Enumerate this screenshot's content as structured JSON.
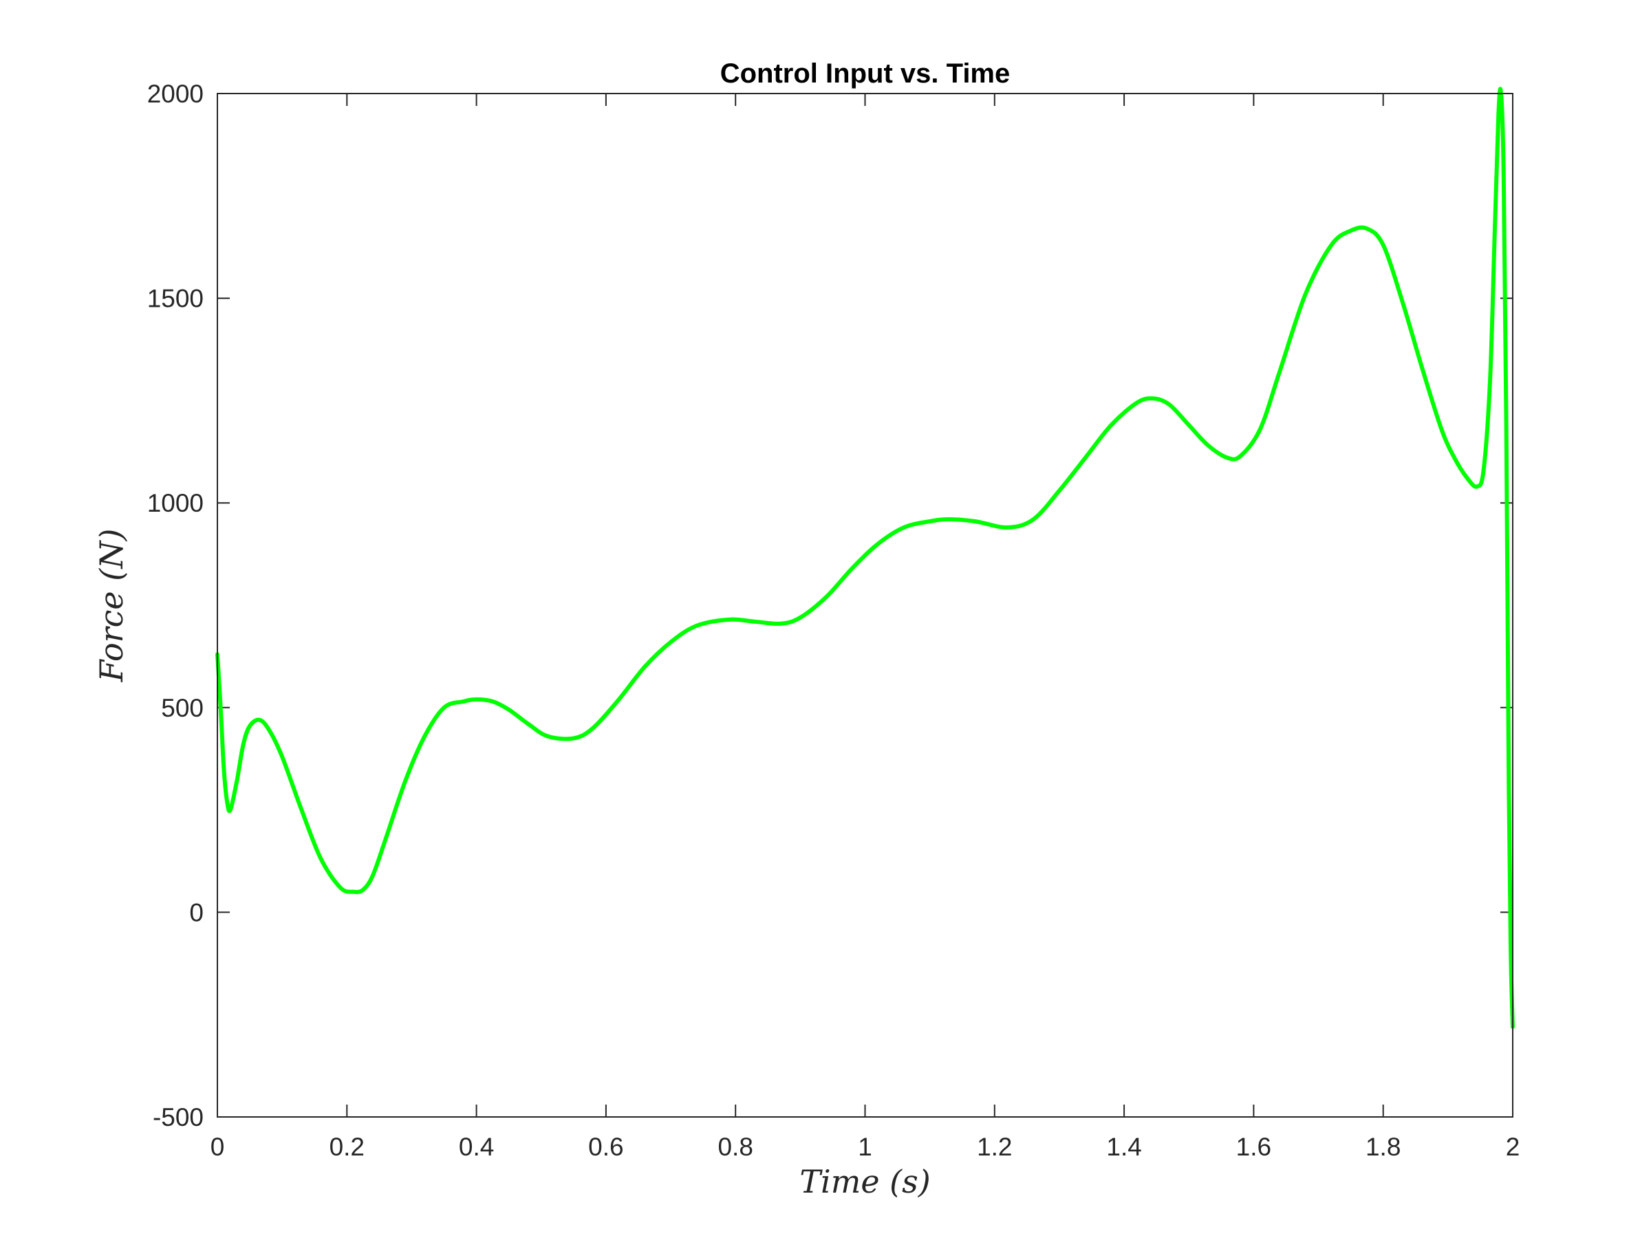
{
  "chart_data": {
    "type": "line",
    "title": "Control Input vs. Time",
    "xlabel": "Time (s)",
    "ylabel": "Force (N)",
    "xlim": [
      0,
      2
    ],
    "ylim": [
      -500,
      2000
    ],
    "xticks": [
      0,
      0.2,
      0.4,
      0.6,
      0.8,
      1,
      1.2,
      1.4,
      1.6,
      1.8,
      2
    ],
    "xtick_labels": [
      "0",
      "0.2",
      "0.4",
      "0.6",
      "0.8",
      "1",
      "1.2",
      "1.4",
      "1.6",
      "1.8",
      "2"
    ],
    "yticks": [
      -500,
      0,
      500,
      1000,
      1500,
      2000
    ],
    "ytick_labels": [
      "-500",
      "0",
      "500",
      "1000",
      "1500",
      "2000"
    ],
    "grid": false,
    "line_color": "#00ff00",
    "series": [
      {
        "x": [
          0,
          0.005,
          0.01,
          0.015,
          0.02,
          0.03,
          0.04,
          0.05,
          0.065,
          0.08,
          0.1,
          0.13,
          0.16,
          0.19,
          0.21,
          0.225,
          0.24,
          0.26,
          0.29,
          0.32,
          0.35,
          0.38,
          0.4,
          0.425,
          0.45,
          0.48,
          0.51,
          0.55,
          0.58,
          0.62,
          0.66,
          0.7,
          0.74,
          0.79,
          0.83,
          0.87,
          0.9,
          0.94,
          0.98,
          1.02,
          1.06,
          1.1,
          1.13,
          1.17,
          1.22,
          1.26,
          1.3,
          1.34,
          1.38,
          1.42,
          1.445,
          1.47,
          1.5,
          1.53,
          1.56,
          1.58,
          1.61,
          1.64,
          1.68,
          1.72,
          1.75,
          1.775,
          1.8,
          1.83,
          1.86,
          1.89,
          1.91,
          1.93,
          1.945,
          1.955,
          1.965,
          1.972,
          1.978,
          1.982,
          1.986,
          1.99,
          1.994,
          1.997,
          2.0
        ],
        "y": [
          630,
          500,
          350,
          270,
          250,
          320,
          410,
          455,
          470,
          445,
          380,
          250,
          130,
          60,
          50,
          55,
          90,
          180,
          320,
          430,
          500,
          515,
          520,
          515,
          495,
          460,
          430,
          425,
          450,
          520,
          600,
          660,
          700,
          715,
          710,
          705,
          720,
          770,
          840,
          900,
          940,
          955,
          960,
          955,
          940,
          960,
          1030,
          1110,
          1190,
          1245,
          1255,
          1240,
          1190,
          1140,
          1110,
          1115,
          1180,
          1320,
          1510,
          1630,
          1665,
          1670,
          1630,
          1490,
          1330,
          1180,
          1110,
          1060,
          1040,
          1080,
          1300,
          1650,
          1950,
          2000,
          1800,
          1200,
          300,
          -100,
          -280
        ]
      }
    ]
  }
}
